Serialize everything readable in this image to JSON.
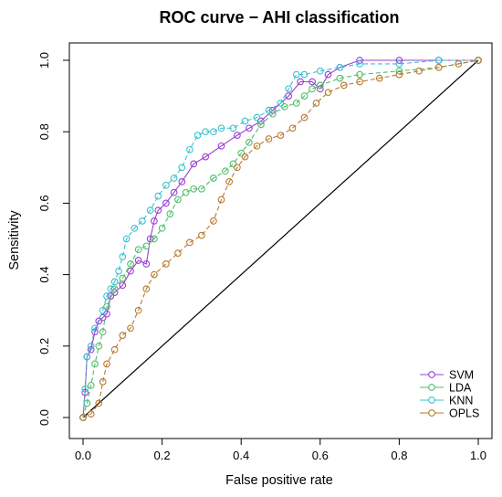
{
  "chart_data": {
    "type": "line",
    "title": "ROC curve − AHI classification",
    "xlabel": "False positive rate",
    "ylabel": "Sensitivity",
    "xlim": [
      0,
      1
    ],
    "ylim": [
      0,
      1
    ],
    "x_ticks": [
      "0.0",
      "0.2",
      "0.4",
      "0.6",
      "0.8",
      "1.0"
    ],
    "y_ticks": [
      "0.0",
      "0.2",
      "0.4",
      "0.6",
      "0.8",
      "1.0"
    ],
    "grid": false,
    "legend_position": "bottom-right",
    "diagonal_reference": true,
    "series": [
      {
        "name": "SVM",
        "color": "#9b3fd3",
        "line_style": "solid",
        "points": [
          [
            0,
            0
          ],
          [
            0.005,
            0.07
          ],
          [
            0.01,
            0.17
          ],
          [
            0.02,
            0.19
          ],
          [
            0.03,
            0.24
          ],
          [
            0.04,
            0.27
          ],
          [
            0.05,
            0.28
          ],
          [
            0.06,
            0.29
          ],
          [
            0.07,
            0.34
          ],
          [
            0.08,
            0.35
          ],
          [
            0.1,
            0.37
          ],
          [
            0.12,
            0.41
          ],
          [
            0.14,
            0.44
          ],
          [
            0.16,
            0.43
          ],
          [
            0.17,
            0.5
          ],
          [
            0.18,
            0.55
          ],
          [
            0.19,
            0.58
          ],
          [
            0.21,
            0.6
          ],
          [
            0.23,
            0.63
          ],
          [
            0.25,
            0.66
          ],
          [
            0.28,
            0.71
          ],
          [
            0.31,
            0.73
          ],
          [
            0.35,
            0.76
          ],
          [
            0.39,
            0.79
          ],
          [
            0.42,
            0.81
          ],
          [
            0.45,
            0.83
          ],
          [
            0.48,
            0.86
          ],
          [
            0.52,
            0.9
          ],
          [
            0.55,
            0.94
          ],
          [
            0.58,
            0.94
          ],
          [
            0.6,
            0.92
          ],
          [
            0.62,
            0.96
          ],
          [
            0.65,
            0.98
          ],
          [
            0.7,
            1.0
          ],
          [
            0.8,
            1.0
          ],
          [
            0.9,
            1.0
          ],
          [
            1.0,
            1.0
          ]
        ]
      },
      {
        "name": "LDA",
        "color": "#4fbf6a",
        "line_style": "dashed",
        "points": [
          [
            0,
            0
          ],
          [
            0.01,
            0.04
          ],
          [
            0.02,
            0.09
          ],
          [
            0.03,
            0.15
          ],
          [
            0.04,
            0.2
          ],
          [
            0.05,
            0.24
          ],
          [
            0.06,
            0.31
          ],
          [
            0.08,
            0.36
          ],
          [
            0.1,
            0.39
          ],
          [
            0.12,
            0.43
          ],
          [
            0.14,
            0.47
          ],
          [
            0.16,
            0.48
          ],
          [
            0.18,
            0.5
          ],
          [
            0.2,
            0.53
          ],
          [
            0.22,
            0.57
          ],
          [
            0.24,
            0.61
          ],
          [
            0.26,
            0.63
          ],
          [
            0.28,
            0.64
          ],
          [
            0.3,
            0.64
          ],
          [
            0.33,
            0.67
          ],
          [
            0.36,
            0.69
          ],
          [
            0.38,
            0.71
          ],
          [
            0.4,
            0.74
          ],
          [
            0.42,
            0.77
          ],
          [
            0.45,
            0.82
          ],
          [
            0.48,
            0.85
          ],
          [
            0.51,
            0.87
          ],
          [
            0.54,
            0.88
          ],
          [
            0.56,
            0.9
          ],
          [
            0.58,
            0.92
          ],
          [
            0.6,
            0.93
          ],
          [
            0.65,
            0.95
          ],
          [
            0.7,
            0.96
          ],
          [
            0.8,
            0.97
          ],
          [
            0.9,
            0.98
          ],
          [
            1.0,
            1.0
          ]
        ]
      },
      {
        "name": "KNN",
        "color": "#3cc0d0",
        "line_style": "dashed",
        "points": [
          [
            0,
            0
          ],
          [
            0.005,
            0.08
          ],
          [
            0.01,
            0.17
          ],
          [
            0.02,
            0.2
          ],
          [
            0.03,
            0.25
          ],
          [
            0.05,
            0.3
          ],
          [
            0.06,
            0.34
          ],
          [
            0.07,
            0.36
          ],
          [
            0.08,
            0.38
          ],
          [
            0.09,
            0.41
          ],
          [
            0.1,
            0.45
          ],
          [
            0.11,
            0.5
          ],
          [
            0.13,
            0.53
          ],
          [
            0.15,
            0.55
          ],
          [
            0.17,
            0.58
          ],
          [
            0.19,
            0.62
          ],
          [
            0.21,
            0.65
          ],
          [
            0.23,
            0.67
          ],
          [
            0.25,
            0.7
          ],
          [
            0.27,
            0.75
          ],
          [
            0.29,
            0.79
          ],
          [
            0.31,
            0.8
          ],
          [
            0.33,
            0.8
          ],
          [
            0.35,
            0.81
          ],
          [
            0.38,
            0.81
          ],
          [
            0.41,
            0.83
          ],
          [
            0.44,
            0.84
          ],
          [
            0.47,
            0.86
          ],
          [
            0.5,
            0.88
          ],
          [
            0.52,
            0.92
          ],
          [
            0.54,
            0.96
          ],
          [
            0.56,
            0.96
          ],
          [
            0.6,
            0.97
          ],
          [
            0.65,
            0.98
          ],
          [
            0.7,
            0.99
          ],
          [
            0.8,
            0.99
          ],
          [
            0.9,
            1.0
          ],
          [
            1.0,
            1.0
          ]
        ]
      },
      {
        "name": "OPLS",
        "color": "#b87a2f",
        "line_style": "dashed",
        "points": [
          [
            0,
            0
          ],
          [
            0.02,
            0.01
          ],
          [
            0.04,
            0.04
          ],
          [
            0.05,
            0.1
          ],
          [
            0.06,
            0.15
          ],
          [
            0.08,
            0.19
          ],
          [
            0.1,
            0.23
          ],
          [
            0.12,
            0.25
          ],
          [
            0.14,
            0.3
          ],
          [
            0.16,
            0.36
          ],
          [
            0.18,
            0.4
          ],
          [
            0.21,
            0.43
          ],
          [
            0.24,
            0.46
          ],
          [
            0.27,
            0.49
          ],
          [
            0.3,
            0.51
          ],
          [
            0.33,
            0.55
          ],
          [
            0.35,
            0.61
          ],
          [
            0.37,
            0.66
          ],
          [
            0.39,
            0.7
          ],
          [
            0.41,
            0.73
          ],
          [
            0.44,
            0.76
          ],
          [
            0.47,
            0.78
          ],
          [
            0.5,
            0.79
          ],
          [
            0.53,
            0.81
          ],
          [
            0.56,
            0.84
          ],
          [
            0.59,
            0.88
          ],
          [
            0.62,
            0.91
          ],
          [
            0.66,
            0.93
          ],
          [
            0.7,
            0.94
          ],
          [
            0.75,
            0.95
          ],
          [
            0.8,
            0.96
          ],
          [
            0.85,
            0.97
          ],
          [
            0.9,
            0.98
          ],
          [
            0.95,
            0.99
          ],
          [
            1.0,
            1.0
          ]
        ]
      }
    ]
  }
}
